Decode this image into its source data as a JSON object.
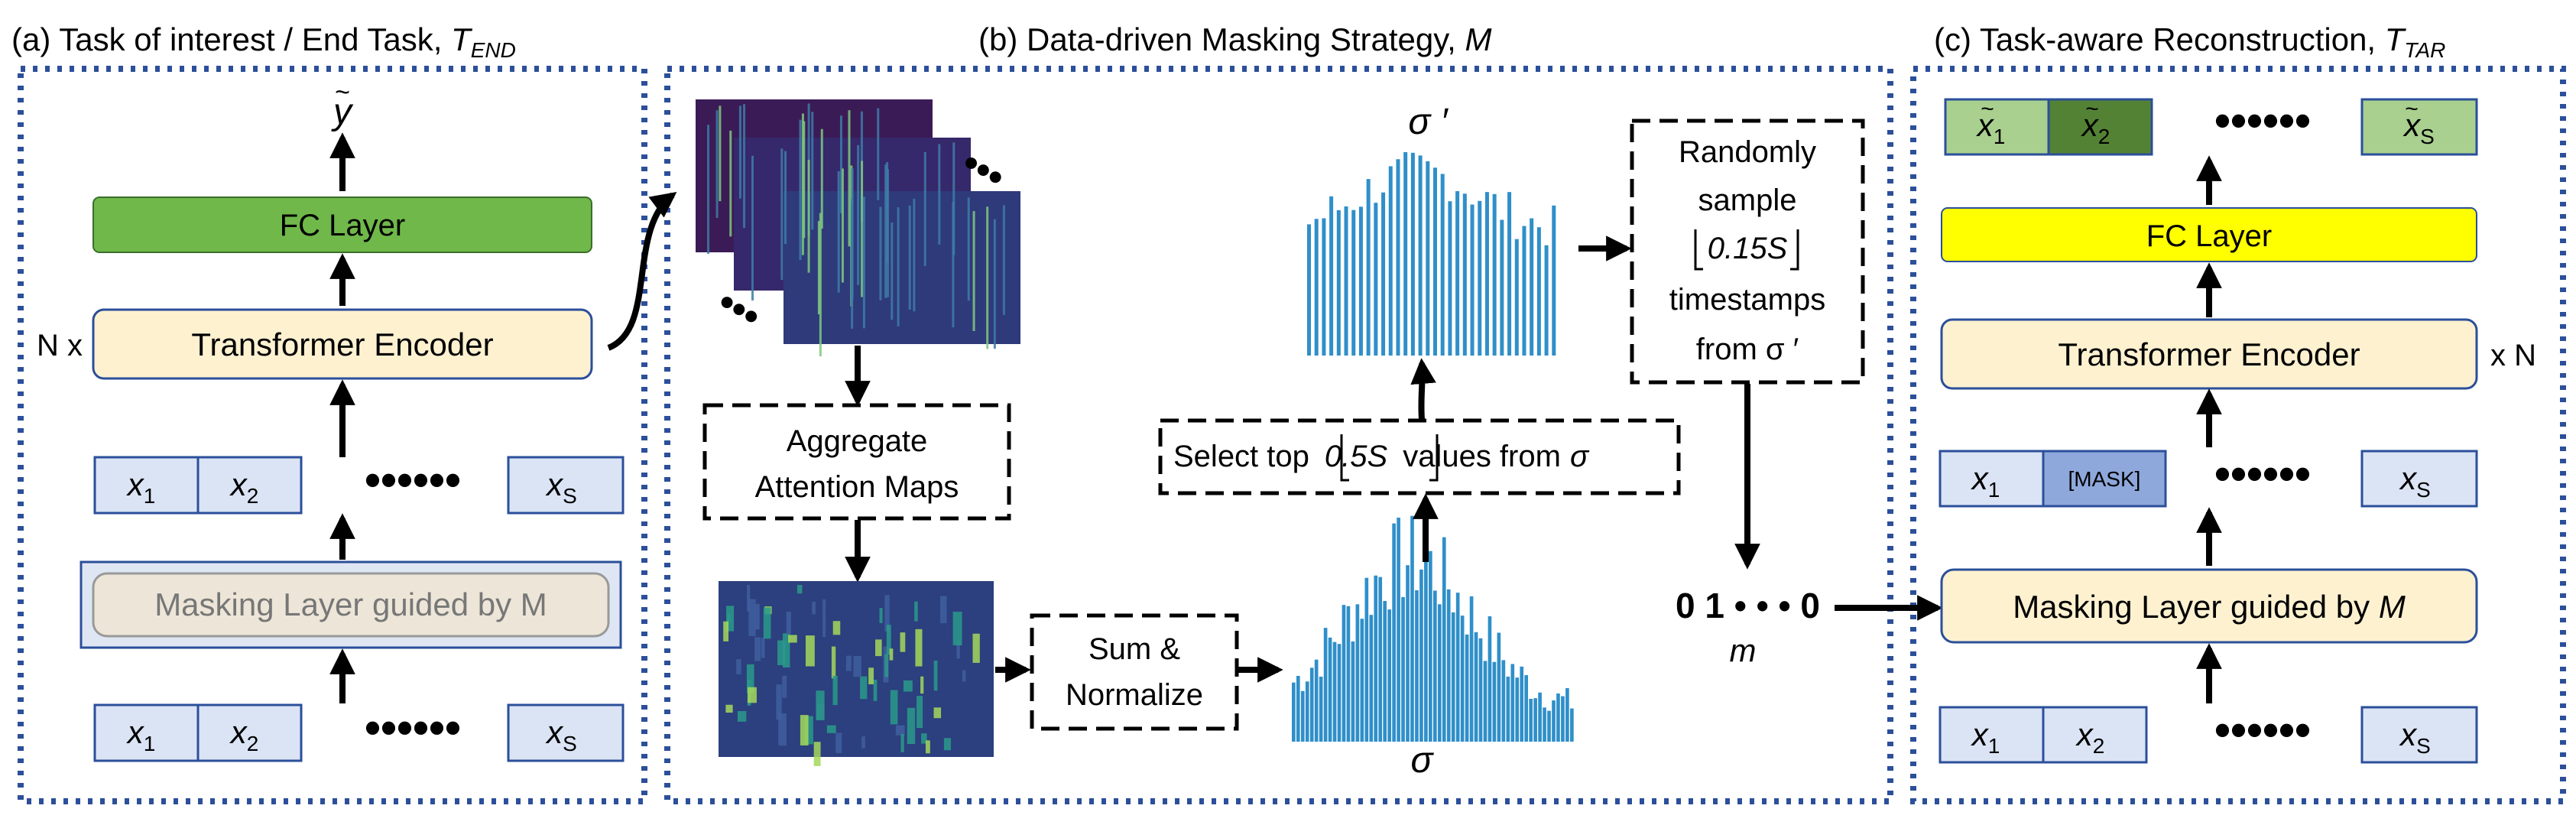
{
  "panels": {
    "a": {
      "title_prefix": "(a) Task of interest / End Task, ",
      "title_sym": "T",
      "title_sub": "END"
    },
    "b": {
      "title_prefix": "(b) Data-driven Masking Strategy, ",
      "title_sym": "M"
    },
    "c": {
      "title_prefix": "(c) Task-aware Reconstruction, ",
      "title_sym": "T",
      "title_sub": "TAR"
    }
  },
  "left": {
    "y_tilde": "y",
    "fc_layer": "FC Layer",
    "transformer_encoder": "Transformer Encoder",
    "n_times": "N x",
    "masking_layer": "Masking Layer guided by M",
    "tokens_top": [
      {
        "s": "x",
        "sub": "1"
      },
      {
        "s": "x",
        "sub": "2"
      },
      {
        "s": "x",
        "sub": "S"
      }
    ],
    "tokens_bottom": [
      {
        "s": "x",
        "sub": "1"
      },
      {
        "s": "x",
        "sub": "2"
      },
      {
        "s": "x",
        "sub": "S"
      }
    ]
  },
  "middle": {
    "aggregate_l1": "Aggregate",
    "aggregate_l2": "Attention Maps",
    "sum_l1": "Sum &",
    "sum_l2": "Normalize",
    "sigma": "σ",
    "sigma_prime": "σ ′",
    "select_pre": "Select top",
    "select_mid": "0.5S",
    "select_post": "values from",
    "select_sym": "σ",
    "rand_l1": "Randomly",
    "rand_l2": "sample",
    "rand_l3": "0.15S",
    "rand_l4": "timestamps",
    "rand_l5": "from σ ′",
    "mask_vector": "0 1 • • • 0",
    "m_label": "m"
  },
  "right": {
    "fc_layer": "FC Layer",
    "transformer_encoder": "Transformer Encoder",
    "x_n": "x N",
    "masking_pre": "Masking Layer guided by ",
    "masking_sym": "M",
    "mask_token": "[MASK]",
    "out_tokens": [
      {
        "s": "x",
        "sub": "1"
      },
      {
        "s": "x",
        "sub": "2"
      },
      {
        "s": "x",
        "sub": "S"
      }
    ],
    "mid_tokens": [
      {
        "s": "x",
        "sub": "1"
      },
      {
        "s": "x",
        "sub": "S"
      }
    ],
    "in_tokens": [
      {
        "s": "x",
        "sub": "1"
      },
      {
        "s": "x",
        "sub": "2"
      },
      {
        "s": "x",
        "sub": "S"
      }
    ]
  },
  "colors": {
    "panel_border": "#2b4f9a",
    "fc_green": "#70b84a",
    "fc_yellow": "#ffff00",
    "encoder_fill": "#fdf1d0",
    "token_fill": "#dbe4f5",
    "token_border": "#2b4f9a",
    "mask_fill": "#8ea8dc",
    "out_light": "#a9d08e",
    "out_dark": "#548235",
    "bar_blue": "#2f8fc9",
    "heat_dark": "#3b1b56"
  }
}
